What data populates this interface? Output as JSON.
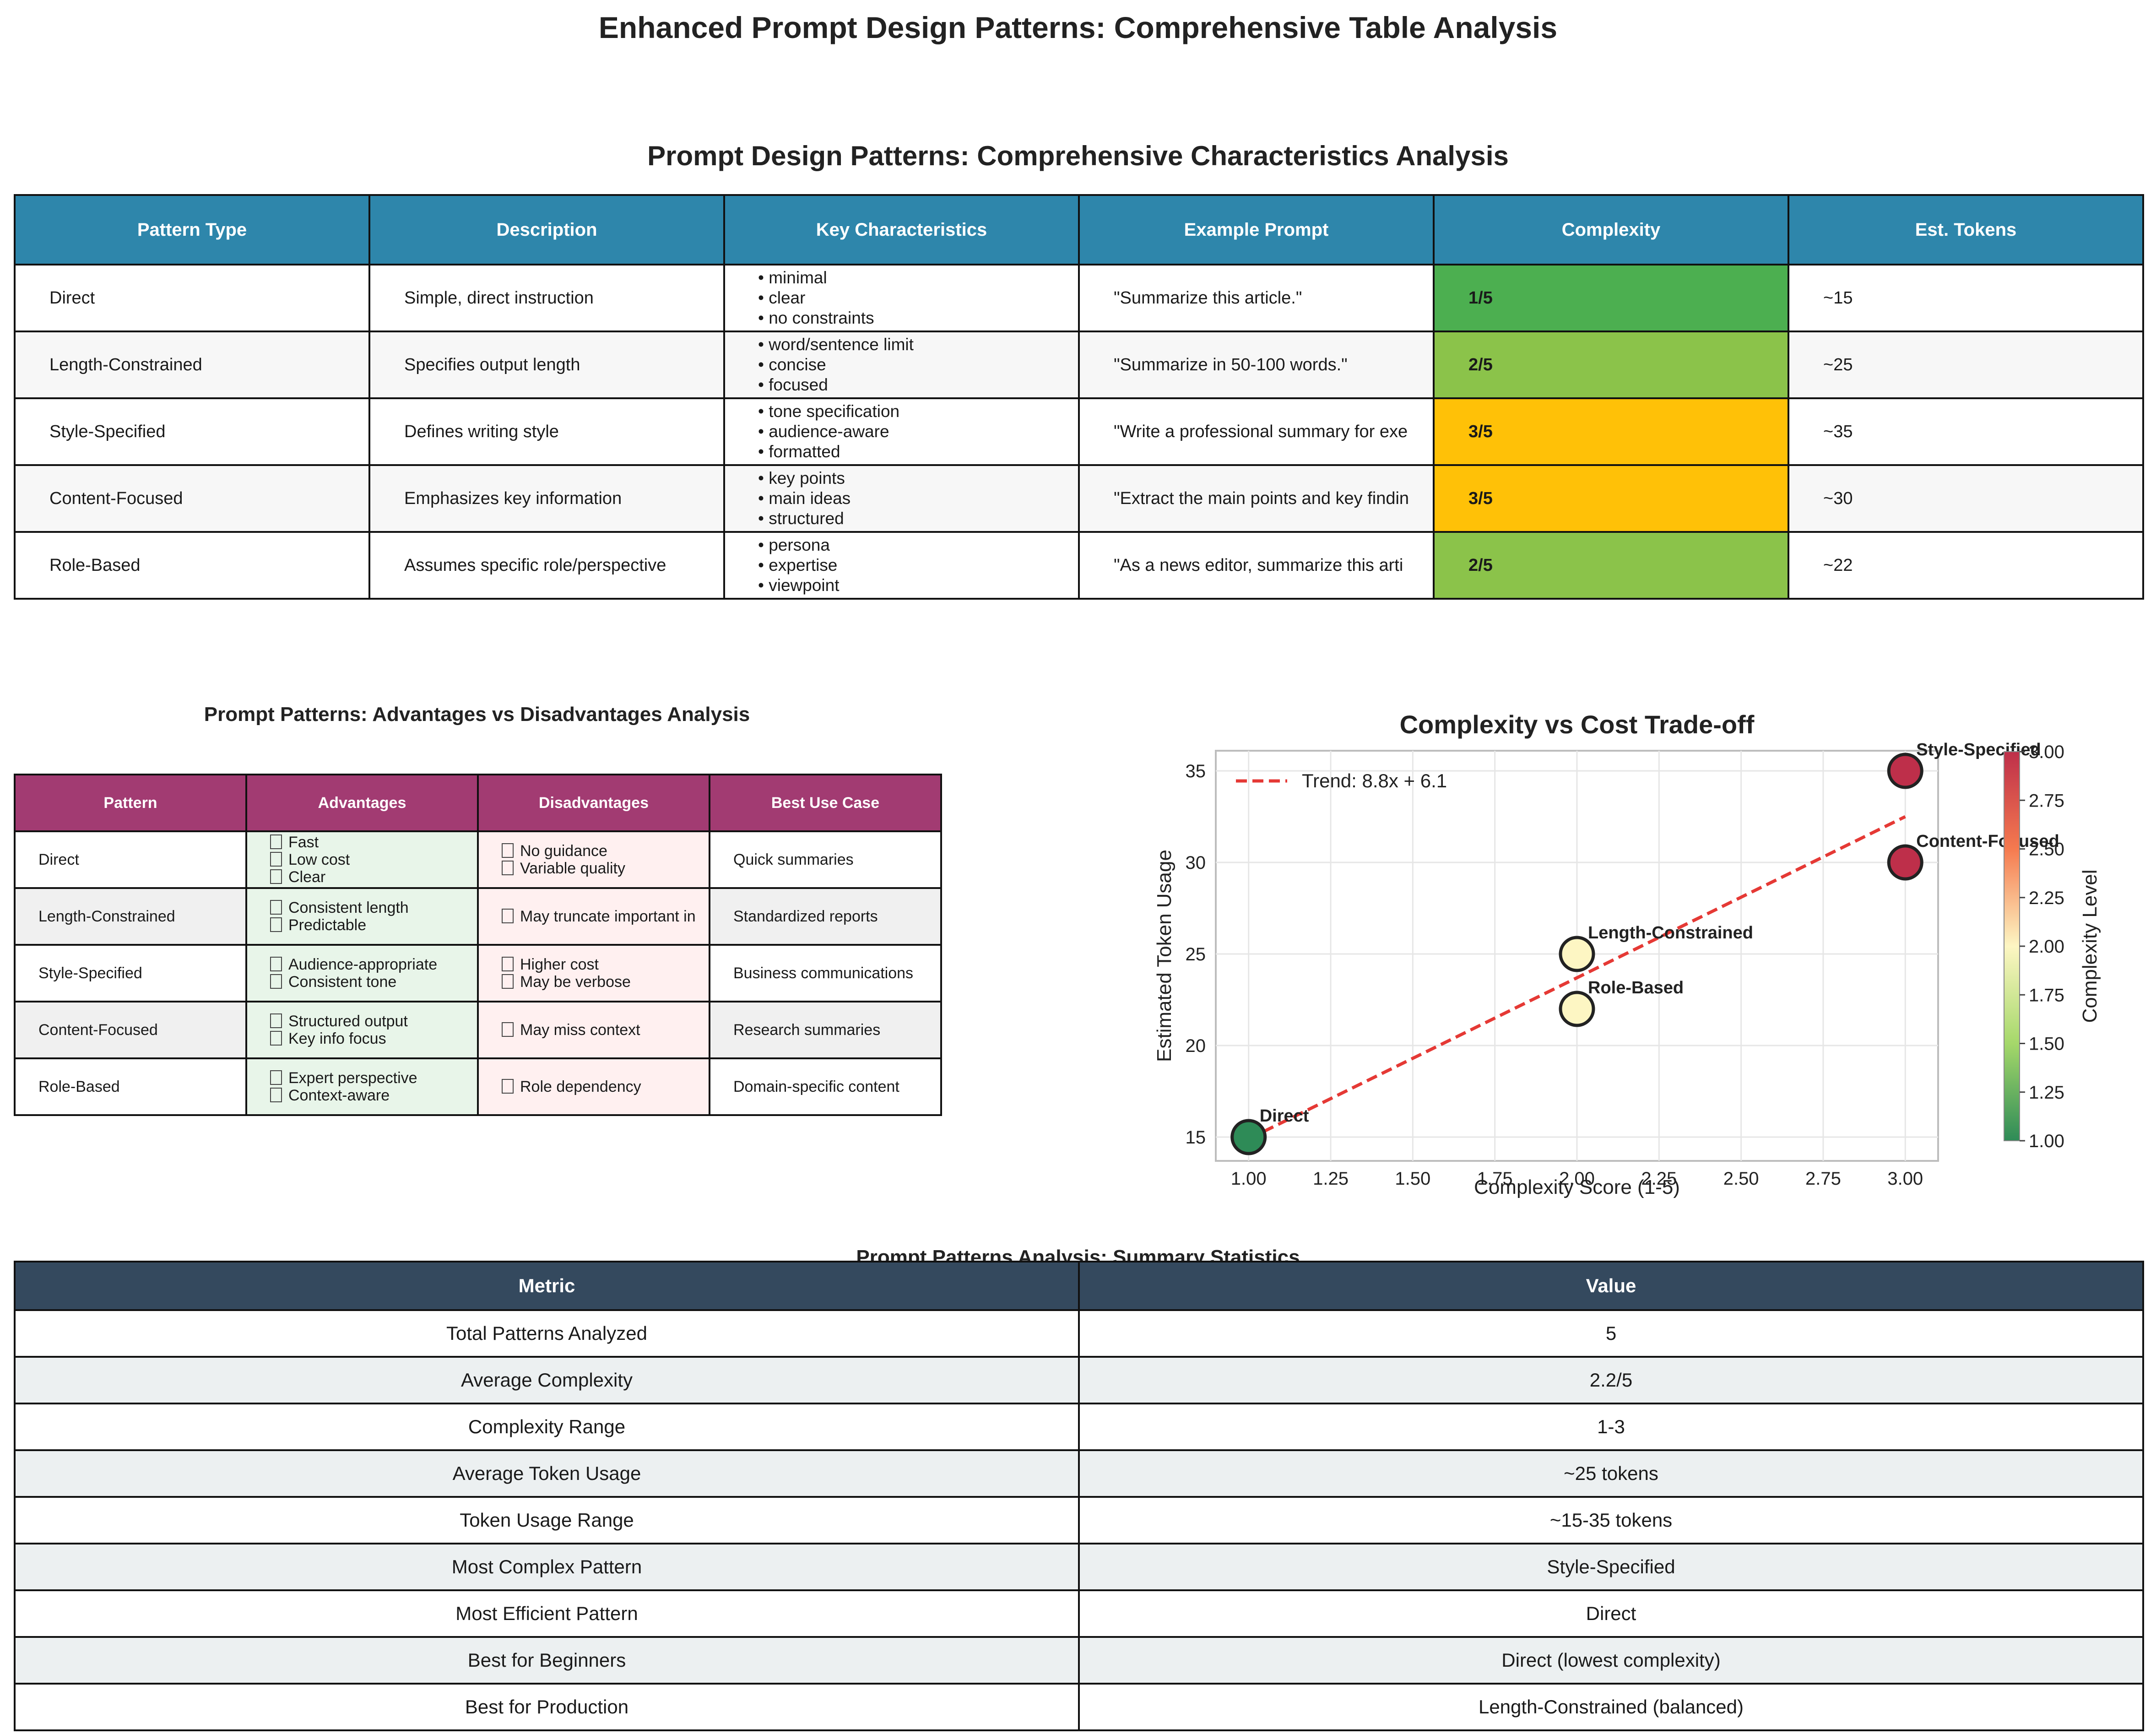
{
  "page_title": "Enhanced Prompt Design Patterns: Comprehensive Table Analysis",
  "table1": {
    "title": "Prompt Design Patterns: Comprehensive Characteristics Analysis",
    "headers": [
      "Pattern Type",
      "Description",
      "Key Characteristics",
      "Example Prompt",
      "Complexity",
      "Est. Tokens"
    ],
    "rows": [
      {
        "pattern": "Direct",
        "description": "Simple, direct instruction",
        "chars": [
          "• minimal",
          "• clear",
          "• no constraints"
        ],
        "example": "\"Summarize this article.\"",
        "complexity": "1/5",
        "tokens": "~15",
        "color": "#4caf50"
      },
      {
        "pattern": "Length-Constrained",
        "description": "Specifies output length",
        "chars": [
          "• word/sentence limit",
          "• concise",
          "• focused"
        ],
        "example": "\"Summarize in 50-100 words.\"",
        "complexity": "2/5",
        "tokens": "~25",
        "color": "#8bc34a"
      },
      {
        "pattern": "Style-Specified",
        "description": "Defines writing style",
        "chars": [
          "• tone specification",
          "• audience-aware",
          "• formatted"
        ],
        "example": "\"Write a professional summary for exe",
        "complexity": "3/5",
        "tokens": "~35",
        "color": "#ffc107"
      },
      {
        "pattern": "Content-Focused",
        "description": "Emphasizes key information",
        "chars": [
          "• key points",
          "• main ideas",
          "• structured"
        ],
        "example": "\"Extract the main points and key findin",
        "complexity": "3/5",
        "tokens": "~30",
        "color": "#ffc107"
      },
      {
        "pattern": "Role-Based",
        "description": "Assumes specific role/perspective",
        "chars": [
          "• persona",
          "• expertise",
          "• viewpoint"
        ],
        "example": "\"As a news editor, summarize this arti",
        "complexity": "2/5",
        "tokens": "~22",
        "color": "#8bc34a"
      }
    ]
  },
  "table2": {
    "title": "Prompt Patterns: Advantages vs Disadvantages Analysis",
    "headers": [
      "Pattern",
      "Advantages",
      "Disadvantages",
      "Best Use Case"
    ],
    "rows": [
      {
        "pattern": "Direct",
        "adv": [
          "Fast",
          "Low cost",
          "Clear"
        ],
        "dis": [
          "No guidance",
          "Variable quality"
        ],
        "use": "Quick summaries"
      },
      {
        "pattern": "Length-Constrained",
        "adv": [
          "Consistent length",
          "Predictable"
        ],
        "dis": [
          "May truncate important in"
        ],
        "use": "Standardized reports"
      },
      {
        "pattern": "Style-Specified",
        "adv": [
          "Audience-appropriate",
          "Consistent tone"
        ],
        "dis": [
          "Higher cost",
          "May be verbose"
        ],
        "use": "Business communications"
      },
      {
        "pattern": "Content-Focused",
        "adv": [
          "Structured output",
          "Key info focus"
        ],
        "dis": [
          "May miss context"
        ],
        "use": "Research summaries"
      },
      {
        "pattern": "Role-Based",
        "adv": [
          "Expert perspective",
          "Context-aware"
        ],
        "dis": [
          "Role dependency"
        ],
        "use": "Domain-specific content"
      }
    ]
  },
  "chart_data": {
    "type": "scatter",
    "title": "Complexity vs Cost Trade-off",
    "xlabel": "Complexity Score (1-5)",
    "ylabel": "Estimated Token Usage",
    "xlim": [
      0.9,
      3.1
    ],
    "ylim": [
      13.7,
      36.1
    ],
    "xticks": [
      "1.00",
      "1.25",
      "1.50",
      "1.75",
      "2.00",
      "2.25",
      "2.50",
      "2.75",
      "3.00"
    ],
    "yticks": [
      "15",
      "20",
      "25",
      "30",
      "35"
    ],
    "points": [
      {
        "label": "Direct",
        "x": 1,
        "y": 15,
        "color": "#2e8b57"
      },
      {
        "label": "Length-Constrained",
        "x": 2,
        "y": 25,
        "color": "#fdf6c3"
      },
      {
        "label": "Style-Specified",
        "x": 3,
        "y": 35,
        "color": "#be2f4a"
      },
      {
        "label": "Content-Focused",
        "x": 3,
        "y": 30,
        "color": "#be2f4a"
      },
      {
        "label": "Role-Based",
        "x": 2,
        "y": 22,
        "color": "#fdf6c3"
      }
    ],
    "trend": {
      "label": "Trend: 8.8x + 6.1",
      "slope": 8.8,
      "intercept": 6.1,
      "color": "#e53935"
    },
    "legend_position": "top-left",
    "grid": true,
    "colorbar": {
      "label": "Complexity Level",
      "ticks": [
        "1.00",
        "1.25",
        "1.50",
        "1.75",
        "2.00",
        "2.25",
        "2.50",
        "2.75",
        "3.00"
      ],
      "range": [
        1,
        3
      ],
      "colormap": "RdYlGn_r"
    }
  },
  "table3": {
    "title": "Prompt Patterns Analysis: Summary Statistics",
    "headers": [
      "Metric",
      "Value"
    ],
    "rows": [
      [
        "Total Patterns Analyzed",
        "5"
      ],
      [
        "Average Complexity",
        "2.2/5"
      ],
      [
        "Complexity Range",
        "1-3"
      ],
      [
        "Average Token Usage",
        "~25 tokens"
      ],
      [
        "Token Usage Range",
        "~15-35 tokens"
      ],
      [
        "Most Complex Pattern",
        "Style-Specified"
      ],
      [
        "Most Efficient Pattern",
        "Direct"
      ],
      [
        "Best for Beginners",
        "Direct (lowest complexity)"
      ],
      [
        "Best for Production",
        "Length-Constrained (balanced)"
      ]
    ]
  }
}
